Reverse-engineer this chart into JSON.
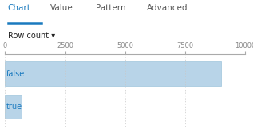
{
  "categories": [
    "false",
    "true"
  ],
  "values": [
    9000,
    700
  ],
  "bar_color": "#b8d4e8",
  "bar_edge_color": "#9ec4dc",
  "xlim": [
    0,
    10000
  ],
  "xticks": [
    0,
    2500,
    5000,
    7500,
    10000
  ],
  "tab_labels": [
    "Chart",
    "Value",
    "Pattern",
    "Advanced"
  ],
  "tab_selected": 0,
  "tab_selected_color": "#1a7abf",
  "tab_default_color": "#555555",
  "row_count_label": "Row count ▾",
  "background_color": "#ffffff",
  "grid_color": "#c8c8c8",
  "label_color": "#1a7abf",
  "bar_height": 0.75,
  "tab_fontsize": 7.5,
  "tick_fontsize": 6.0,
  "label_fontsize": 7.0,
  "rowcount_fontsize": 7.0
}
